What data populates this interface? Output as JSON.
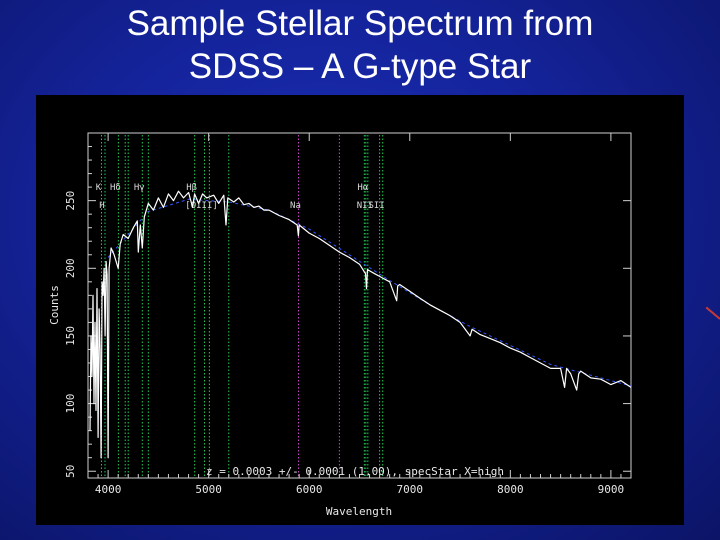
{
  "slide": {
    "title_line1": "Sample Stellar Spectrum from",
    "title_line2": "SDSS – A G-type Star",
    "background": "#14239a"
  },
  "chart_data": {
    "type": "line",
    "xlabel": "Wavelength",
    "ylabel": "Counts",
    "xlim": [
      3800,
      9200
    ],
    "ylim": [
      45,
      300
    ],
    "x_ticks": [
      4000,
      5000,
      6000,
      7000,
      8000,
      9000
    ],
    "x_tick_labels": [
      "4000",
      "5000",
      "6000",
      "7000",
      "8000",
      "9000"
    ],
    "y_ticks": [
      50,
      100,
      150,
      200,
      250
    ],
    "y_tick_labels": [
      "50",
      "100",
      "150",
      "200",
      "250"
    ],
    "annotation": "z = 0.0003 +/- 0.0001 (1.00), specStar X=high",
    "colors": {
      "spectrum": "#ffffff",
      "continuum": "#3355ff",
      "line_marker_green": "#22cc55",
      "line_marker_magenta": "#cc44cc"
    },
    "series": [
      {
        "values": [
          [
            3820,
            80
          ],
          [
            3830,
            150
          ],
          [
            3840,
            120
          ],
          [
            3850,
            180
          ],
          [
            3860,
            100
          ],
          [
            3870,
            160
          ],
          [
            3880,
            95
          ],
          [
            3890,
            185
          ],
          [
            3900,
            75
          ],
          [
            3910,
            170
          ],
          [
            3920,
            140
          ],
          [
            3930,
            60
          ],
          [
            3940,
            190
          ],
          [
            3950,
            180
          ],
          [
            3960,
            200
          ],
          [
            3970,
            150
          ],
          [
            3980,
            205
          ],
          [
            3990,
            195
          ],
          [
            4000,
            60
          ],
          [
            4010,
            200
          ],
          [
            4030,
            215
          ],
          [
            4060,
            210
          ],
          [
            4100,
            200
          ],
          [
            4120,
            218
          ],
          [
            4150,
            225
          ],
          [
            4200,
            222
          ],
          [
            4250,
            230
          ],
          [
            4290,
            235
          ],
          [
            4300,
            212
          ],
          [
            4320,
            232
          ],
          [
            4340,
            215
          ],
          [
            4360,
            238
          ],
          [
            4400,
            248
          ],
          [
            4450,
            243
          ],
          [
            4500,
            252
          ],
          [
            4550,
            245
          ],
          [
            4600,
            255
          ],
          [
            4650,
            250
          ],
          [
            4700,
            257
          ],
          [
            4750,
            252
          ],
          [
            4800,
            256
          ],
          [
            4840,
            245
          ],
          [
            4860,
            255
          ],
          [
            4900,
            248
          ],
          [
            4940,
            255
          ],
          [
            4980,
            252
          ],
          [
            5050,
            254
          ],
          [
            5100,
            248
          ],
          [
            5150,
            254
          ],
          [
            5172,
            232
          ],
          [
            5190,
            252
          ],
          [
            5250,
            249
          ],
          [
            5300,
            252
          ],
          [
            5350,
            247
          ],
          [
            5400,
            248
          ],
          [
            5450,
            245
          ],
          [
            5500,
            246
          ],
          [
            5550,
            243
          ],
          [
            5600,
            243
          ],
          [
            5700,
            239
          ],
          [
            5800,
            236
          ],
          [
            5880,
            232
          ],
          [
            5892,
            224
          ],
          [
            5900,
            232
          ],
          [
            6000,
            226
          ],
          [
            6100,
            222
          ],
          [
            6200,
            217
          ],
          [
            6300,
            212
          ],
          [
            6400,
            208
          ],
          [
            6500,
            203
          ],
          [
            6560,
            196
          ],
          [
            6570,
            185
          ],
          [
            6580,
            199
          ],
          [
            6650,
            196
          ],
          [
            6700,
            194
          ],
          [
            6800,
            190
          ],
          [
            6870,
            176
          ],
          [
            6880,
            187
          ],
          [
            6900,
            188
          ],
          [
            7000,
            183
          ],
          [
            7100,
            178
          ],
          [
            7200,
            173
          ],
          [
            7300,
            169
          ],
          [
            7400,
            165
          ],
          [
            7500,
            160
          ],
          [
            7600,
            150
          ],
          [
            7620,
            155
          ],
          [
            7700,
            151
          ],
          [
            7800,
            148
          ],
          [
            7900,
            145
          ],
          [
            8000,
            141
          ],
          [
            8100,
            138
          ],
          [
            8200,
            134
          ],
          [
            8300,
            130
          ],
          [
            8400,
            126
          ],
          [
            8500,
            126
          ],
          [
            8540,
            112
          ],
          [
            8560,
            126
          ],
          [
            8600,
            122
          ],
          [
            8660,
            110
          ],
          [
            8680,
            122
          ],
          [
            8700,
            124
          ],
          [
            8800,
            119
          ],
          [
            8900,
            118
          ],
          [
            9000,
            114
          ],
          [
            9100,
            117
          ],
          [
            9200,
            112
          ]
        ]
      },
      {
        "values": [
          [
            4000,
            208
          ],
          [
            4400,
            242
          ],
          [
            4800,
            251
          ],
          [
            5200,
            249
          ],
          [
            5600,
            243
          ],
          [
            6000,
            229
          ],
          [
            6400,
            210
          ],
          [
            6800,
            191
          ],
          [
            7200,
            173
          ],
          [
            7600,
            157
          ],
          [
            8000,
            143
          ],
          [
            8400,
            129
          ],
          [
            8800,
            121
          ],
          [
            9200,
            113
          ]
        ]
      }
    ],
    "line_markers": [
      {
        "wavelength": 3934,
        "color": "green",
        "label": "K",
        "label_row": 1
      },
      {
        "wavelength": 3969,
        "color": "green",
        "label": "H",
        "label_row": 2
      },
      {
        "wavelength": 4102,
        "color": "green",
        "label": "Hδ",
        "label_row": 1
      },
      {
        "wavelength": 4170,
        "color": "green",
        "label": "",
        "label_row": 0
      },
      {
        "wavelength": 4200,
        "color": "green",
        "label": "",
        "label_row": 0
      },
      {
        "wavelength": 4340,
        "color": "green",
        "label": "Hγ",
        "label_row": 1
      },
      {
        "wavelength": 4400,
        "color": "green",
        "label": "",
        "label_row": 0
      },
      {
        "wavelength": 4861,
        "color": "green",
        "label": "Hβ",
        "label_row": 1
      },
      {
        "wavelength": 4959,
        "color": "green",
        "label": "[OIII]",
        "label_row": 2
      },
      {
        "wavelength": 5007,
        "color": "green",
        "label": "",
        "label_row": 0
      },
      {
        "wavelength": 5200,
        "color": "green",
        "label": "",
        "label_row": 0
      },
      {
        "wavelength": 5893,
        "color": "magenta",
        "label": "Na",
        "label_row": 2
      },
      {
        "wavelength": 6300,
        "color": "magenta",
        "label": "",
        "label_row": 0
      },
      {
        "wavelength": 6548,
        "color": "green",
        "label": "",
        "label_row": 0
      },
      {
        "wavelength": 6563,
        "color": "green",
        "label": "Hα",
        "label_row": 1
      },
      {
        "wavelength": 6583,
        "color": "green",
        "label": "NII",
        "label_row": 2
      },
      {
        "wavelength": 6700,
        "color": "green",
        "label": "SII",
        "label_row": 2
      },
      {
        "wavelength": 6731,
        "color": "green",
        "label": "",
        "label_row": 0
      }
    ]
  }
}
